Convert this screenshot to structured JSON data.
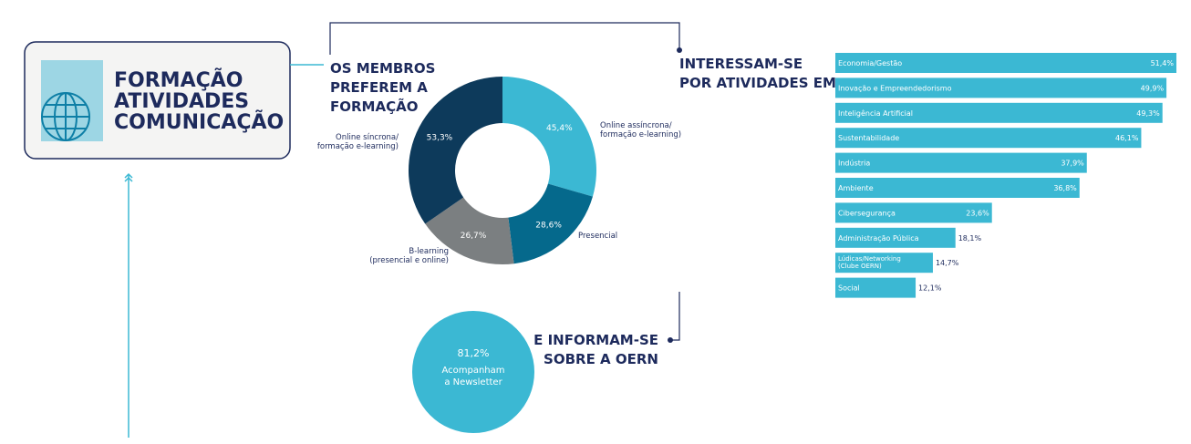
{
  "header": {
    "lines": [
      "FORMAÇÃO",
      "ATIVIDADES",
      "COMUNICAÇÃO"
    ]
  },
  "chart_data": [
    {
      "type": "donut",
      "title": "OS MEMBROS\nPREFEREM A\nFORMAÇÃO",
      "categories": [
        "Online assíncrona/\nformação e-learning)",
        "Presencial",
        "B-learning\n(presencial e online)",
        "Online síncrona/\nformação e-learning)"
      ],
      "values": [
        45.4,
        28.6,
        26.7,
        53.3
      ],
      "value_labels": [
        "45,4%",
        "28,6%",
        "26,7%",
        "53,3%"
      ],
      "colors": [
        "#3bb8d3",
        "#05698c",
        "#7b7f81",
        "#0d3a5b"
      ]
    },
    {
      "type": "bar",
      "title": "INTERESSAM-SE\nPOR ATIVIDADES EM:",
      "color": "#3bb8d3",
      "categories": [
        "Economia/Gestão",
        "Inovação e Empreendedorismo",
        "Inteligência Artificial",
        "Sustentabilidade",
        "Indústria",
        "Ambiente",
        "Cibersegurança",
        "Administração Pública",
        "Lúdicas/Networking\n(Clube OERN)",
        "Social"
      ],
      "values": [
        51.4,
        49.9,
        49.3,
        46.1,
        37.9,
        36.8,
        23.6,
        18.1,
        14.7,
        12.1
      ],
      "value_labels": [
        "51,4%",
        "49,9%",
        "49,3%",
        "46,1%",
        "37,9%",
        "36,8%",
        "23,6%",
        "18,1%",
        "14,7%",
        "12,1%"
      ]
    },
    {
      "type": "stat",
      "title": "E INFORMAM-SE\nSOBRE A OERN",
      "color": "#3bb8d3",
      "value": 81.2,
      "value_label": "81,2%",
      "label": "Acompanham\na Newsletter"
    }
  ]
}
